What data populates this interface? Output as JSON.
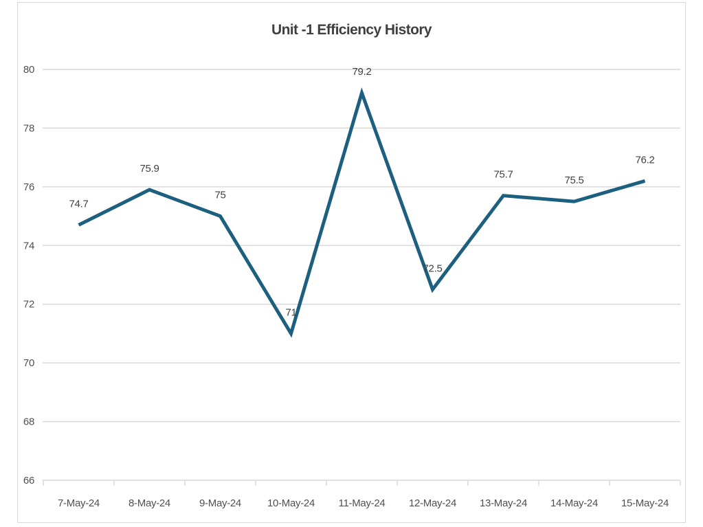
{
  "chart_data": {
    "type": "line",
    "title": "Unit -1 Efficiency History",
    "categories": [
      "7-May-24",
      "8-May-24",
      "9-May-24",
      "10-May-24",
      "11-May-24",
      "12-May-24",
      "13-May-24",
      "14-May-24",
      "15-May-24"
    ],
    "series": [
      {
        "name": "Unit-1 Efficiency",
        "values": [
          74.7,
          75.9,
          75,
          71,
          79.2,
          72.5,
          75.7,
          75.5,
          76.2
        ]
      }
    ],
    "data_labels": [
      "74.7",
      "75.9",
      "75",
      "71",
      "79.2",
      "72.5",
      "75.7",
      "75.5",
      "76.2"
    ],
    "xlabel": "",
    "ylabel": "",
    "ylim": [
      66,
      80
    ],
    "yticks": [
      66,
      68,
      70,
      72,
      74,
      76,
      78,
      80
    ],
    "grid": true,
    "legend_position": "none",
    "colors": {
      "line": "#1d5f7f",
      "grid": "#d9d9d9",
      "border": "#d9d9d9",
      "axis_text": "#4f4f4f",
      "data_label_text": "#404040",
      "title_text": "#3f3f3f",
      "background": "#ffffff"
    }
  }
}
